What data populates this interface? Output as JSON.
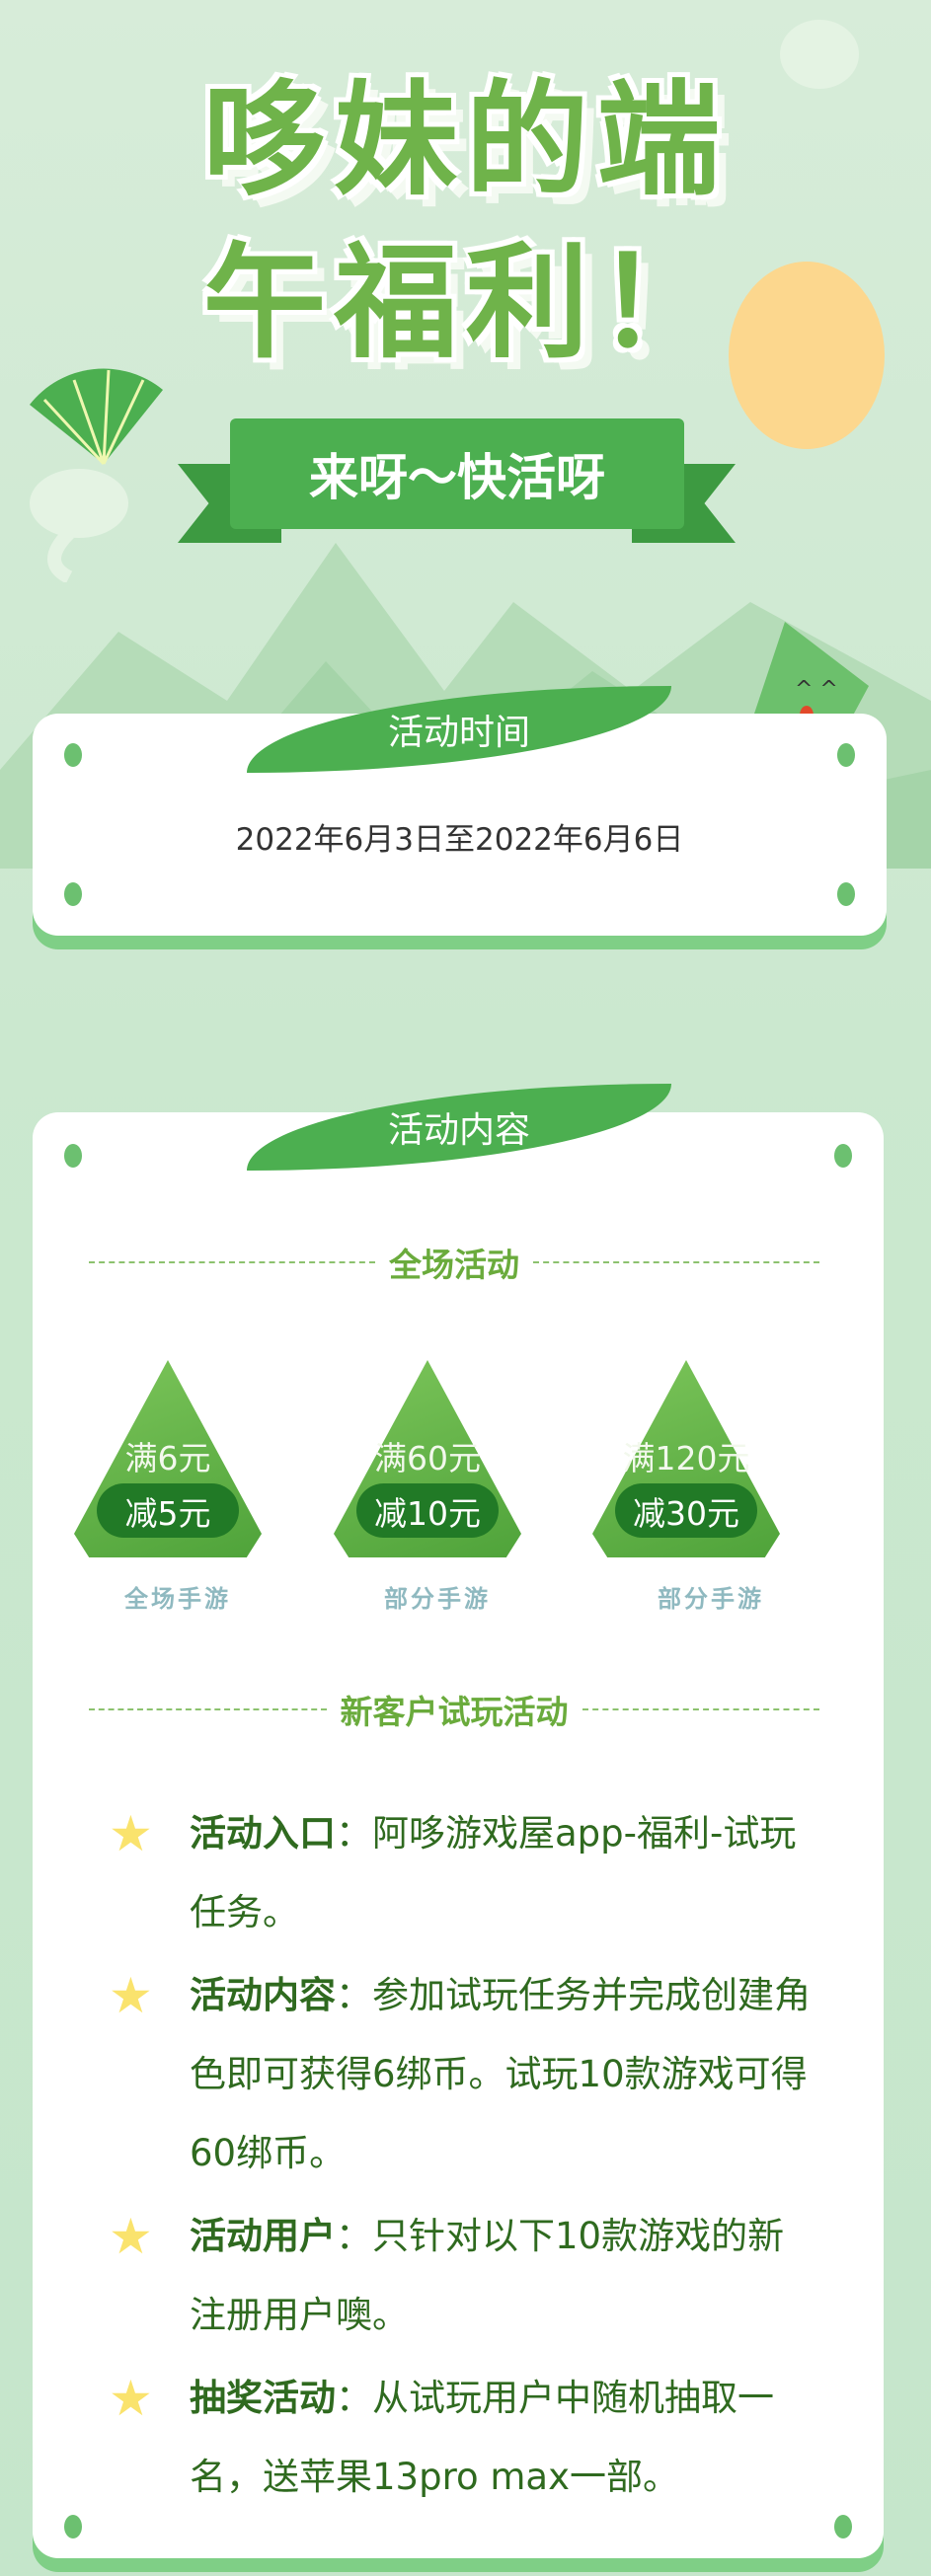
{
  "header": {
    "title_line1": "哆妹的端",
    "title_line2": "午福利！",
    "banner": "来呀〜快活呀"
  },
  "time_section": {
    "heading": "活动时间",
    "dates": "2022年6月3日至2022年6月6日"
  },
  "content_section": {
    "heading": "活动内容",
    "sub1": "全场活动",
    "deals": [
      {
        "threshold": "满6元",
        "discount": "减5元",
        "scope": "全场手游"
      },
      {
        "threshold": "满60元",
        "discount": "减10元",
        "scope": "部分手游"
      },
      {
        "threshold": "满120元",
        "discount": "减30元",
        "scope": "部分手游"
      }
    ],
    "sub2": "新客户试玩活动",
    "rules": [
      {
        "label": "活动入口",
        "text": "：阿哆游戏屋app-福利-试玩任务。"
      },
      {
        "label": "活动内容",
        "text": "：参加试玩任务并完成创建角色即可获得6绑币。试玩10款游戏可得60绑币。"
      },
      {
        "label": "活动用户",
        "text": "：只针对以下10款游戏的新注册用户噢。"
      },
      {
        "label": "抽奖活动",
        "text": "：从试玩用户中随机抽取一名，送苹果13pro max一部。"
      }
    ]
  },
  "colors": {
    "accent": "#4caf50",
    "title": "#6fb34a",
    "text": "#2f6a1f",
    "sun": "#fcd78e",
    "star": "#fae36d"
  },
  "icons": [
    "fan-icon",
    "sun-icon",
    "cloud-icon",
    "zongzi-mascot-icon",
    "star-icon"
  ]
}
